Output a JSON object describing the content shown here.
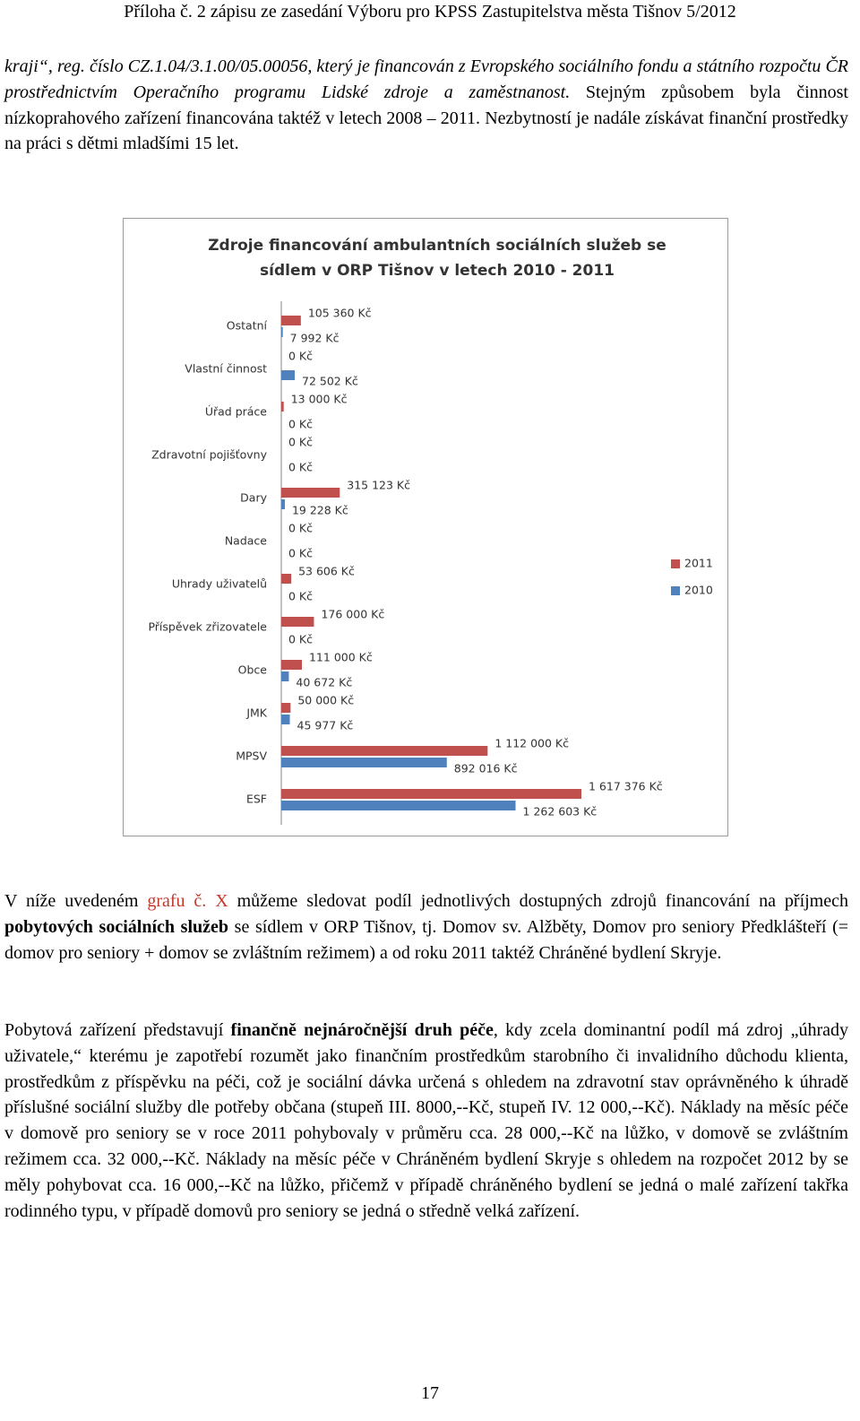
{
  "header": "Příloha č. 2 zápisu ze zasedání Výboru pro KPSS Zastupitelstva města Tišnov 5/2012",
  "paragraphs": [
    [
      "kraji“, reg. číslo CZ.1.04/3.1.00/05.00056, který je financován z Evropského sociálního fondu a státního rozpočtu ČR prostřednictvím Operačního programu Lidské zdroje a zaměstnanost.",
      " Stejným způsobem byla činnost nízkoprahového zařízení financována taktéž v letech 2008 – 2011. Nezbytností je nadále získávat finanční prostředky na práci s dětmi mladšími 15 let."
    ],
    [
      "V níže uvedeném ",
      "grafu č. X",
      " můžeme sledovat podíl jednotlivých dostupných zdrojů financování na příjmech ",
      "pobytových sociálních služeb",
      " se sídlem v ORP Tišnov, tj. Domov sv. Alžběty, Domov pro seniory Předklášteří (= domov pro seniory + domov se zvláštním režimem) a od roku 2011 taktéž Chráněné bydlení Skryje."
    ],
    [
      "Pobytová zařízení představují ",
      "finančně nejnáročnější druh péče",
      ", kdy zcela dominantní podíl má zdroj „úhrady uživatele,“ kterému je zapotřebí rozumět jako finančním prostředkům starobního či invalidního důchodu klienta, prostředkům z příspěvku na péči, což je sociální dávka určená s ohledem na zdravotní stav oprávněného k úhradě příslušné sociální služby dle potřeby občana (stupeň III. 8000,--Kč, stupeň IV. 12 000,--Kč). Náklady na měsíc péče v domově pro seniory se v roce 2011 pohybovaly v průměru cca. 28 000,--Kč na lůžko, v domově se zvláštním režimem cca. 32 000,--Kč. Náklady na měsíc péče v Chráněném bydlení Skryje s ohledem na rozpočet 2012 by se měly pohybovat cca. 16 000,--Kč na lůžko, přičemž v případě chráněného bydlení se jedná o malé zařízení takřka rodinného typu, v případě domovů pro seniory se jedná o středně velká zařízení."
    ]
  ],
  "chart_data": {
    "type": "bar",
    "orientation": "horizontal",
    "title": "Zdroje financování ambulantních sociálních služeb se sídlem v ORP Tišnov v letech 2010 - 2011",
    "categories": [
      "Ostatní",
      "Vlastní činnost",
      "Úřad práce",
      "Zdravotní pojišťovny",
      "Dary",
      "Nadace",
      "Uhrady uživatelů",
      "Příspěvek zřizovatele",
      "Obce",
      "JMK",
      "MPSV",
      "ESF"
    ],
    "series": [
      {
        "name": "2011",
        "color": "#c0504d",
        "values": [
          105360,
          0,
          13000,
          0,
          315123,
          0,
          53606,
          176000,
          111000,
          50000,
          1112000,
          1617376
        ],
        "value_labels": [
          "105 360 Kč",
          "0 Kč",
          "13 000 Kč",
          "0 Kč",
          "315 123 Kč",
          "0 Kč",
          "53 606 Kč",
          "176 000 Kč",
          "111 000 Kč",
          "50 000 Kč",
          "1 112 000 Kč",
          "1 617 376 Kč"
        ]
      },
      {
        "name": "2010",
        "color": "#4f81bd",
        "values": [
          7992,
          72502,
          0,
          0,
          19228,
          0,
          0,
          0,
          40672,
          45977,
          892016,
          1262603
        ],
        "value_labels": [
          "7 992 Kč",
          "72 502 Kč",
          "0 Kč",
          "0 Kč",
          "19 228 Kč",
          "0 Kč",
          "0 Kč",
          "0 Kč",
          "40 672 Kč",
          "45 977 Kč",
          "892 016 Kč",
          "1 262 603 Kč"
        ]
      }
    ],
    "legend": "right"
  },
  "page_number": "17"
}
